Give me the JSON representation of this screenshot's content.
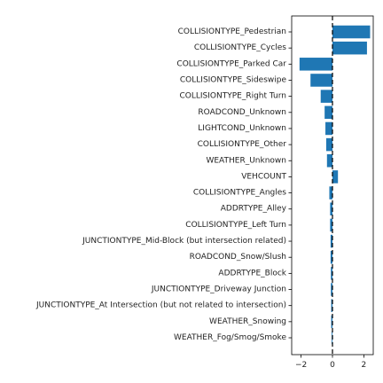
{
  "chart_data": {
    "type": "bar",
    "orientation": "horizontal",
    "title": "",
    "xlabel": "",
    "ylabel": "",
    "bar_color": "#1f77b4",
    "reference_line": {
      "x": 0,
      "style": "dashed",
      "color": "#000000"
    },
    "xlim": [
      -2.6,
      2.6
    ],
    "xticks": [
      -2,
      0,
      2
    ],
    "xtick_labels": [
      "−2",
      "0",
      "2"
    ],
    "grid": false,
    "categories": [
      "COLLISIONTYPE_Pedestrian",
      "COLLISIONTYPE_Cycles",
      "COLLISIONTYPE_Parked Car",
      "COLLISIONTYPE_Sideswipe",
      "COLLISIONTYPE_Right Turn",
      "ROADCOND_Unknown",
      "LIGHTCOND_Unknown",
      "COLLISIONTYPE_Other",
      "WEATHER_Unknown",
      "VEHCOUNT",
      "COLLISIONTYPE_Angles",
      "ADDRTYPE_Alley",
      "COLLISIONTYPE_Left Turn",
      "JUNCTIONTYPE_Mid-Block (but intersection related)",
      "ROADCOND_Snow/Slush",
      "ADDRTYPE_Block",
      "JUNCTIONTYPE_Driveway Junction",
      "JUNCTIONTYPE_At Intersection (but not related to intersection)",
      "WEATHER_Snowing",
      "WEATHER_Fog/Smog/Smoke"
    ],
    "values": [
      2.4,
      2.2,
      -2.1,
      -1.4,
      -0.75,
      -0.5,
      -0.45,
      -0.4,
      -0.35,
      0.35,
      -0.2,
      -0.15,
      -0.15,
      -0.12,
      -0.12,
      -0.1,
      -0.1,
      -0.08,
      -0.08,
      -0.05
    ]
  }
}
